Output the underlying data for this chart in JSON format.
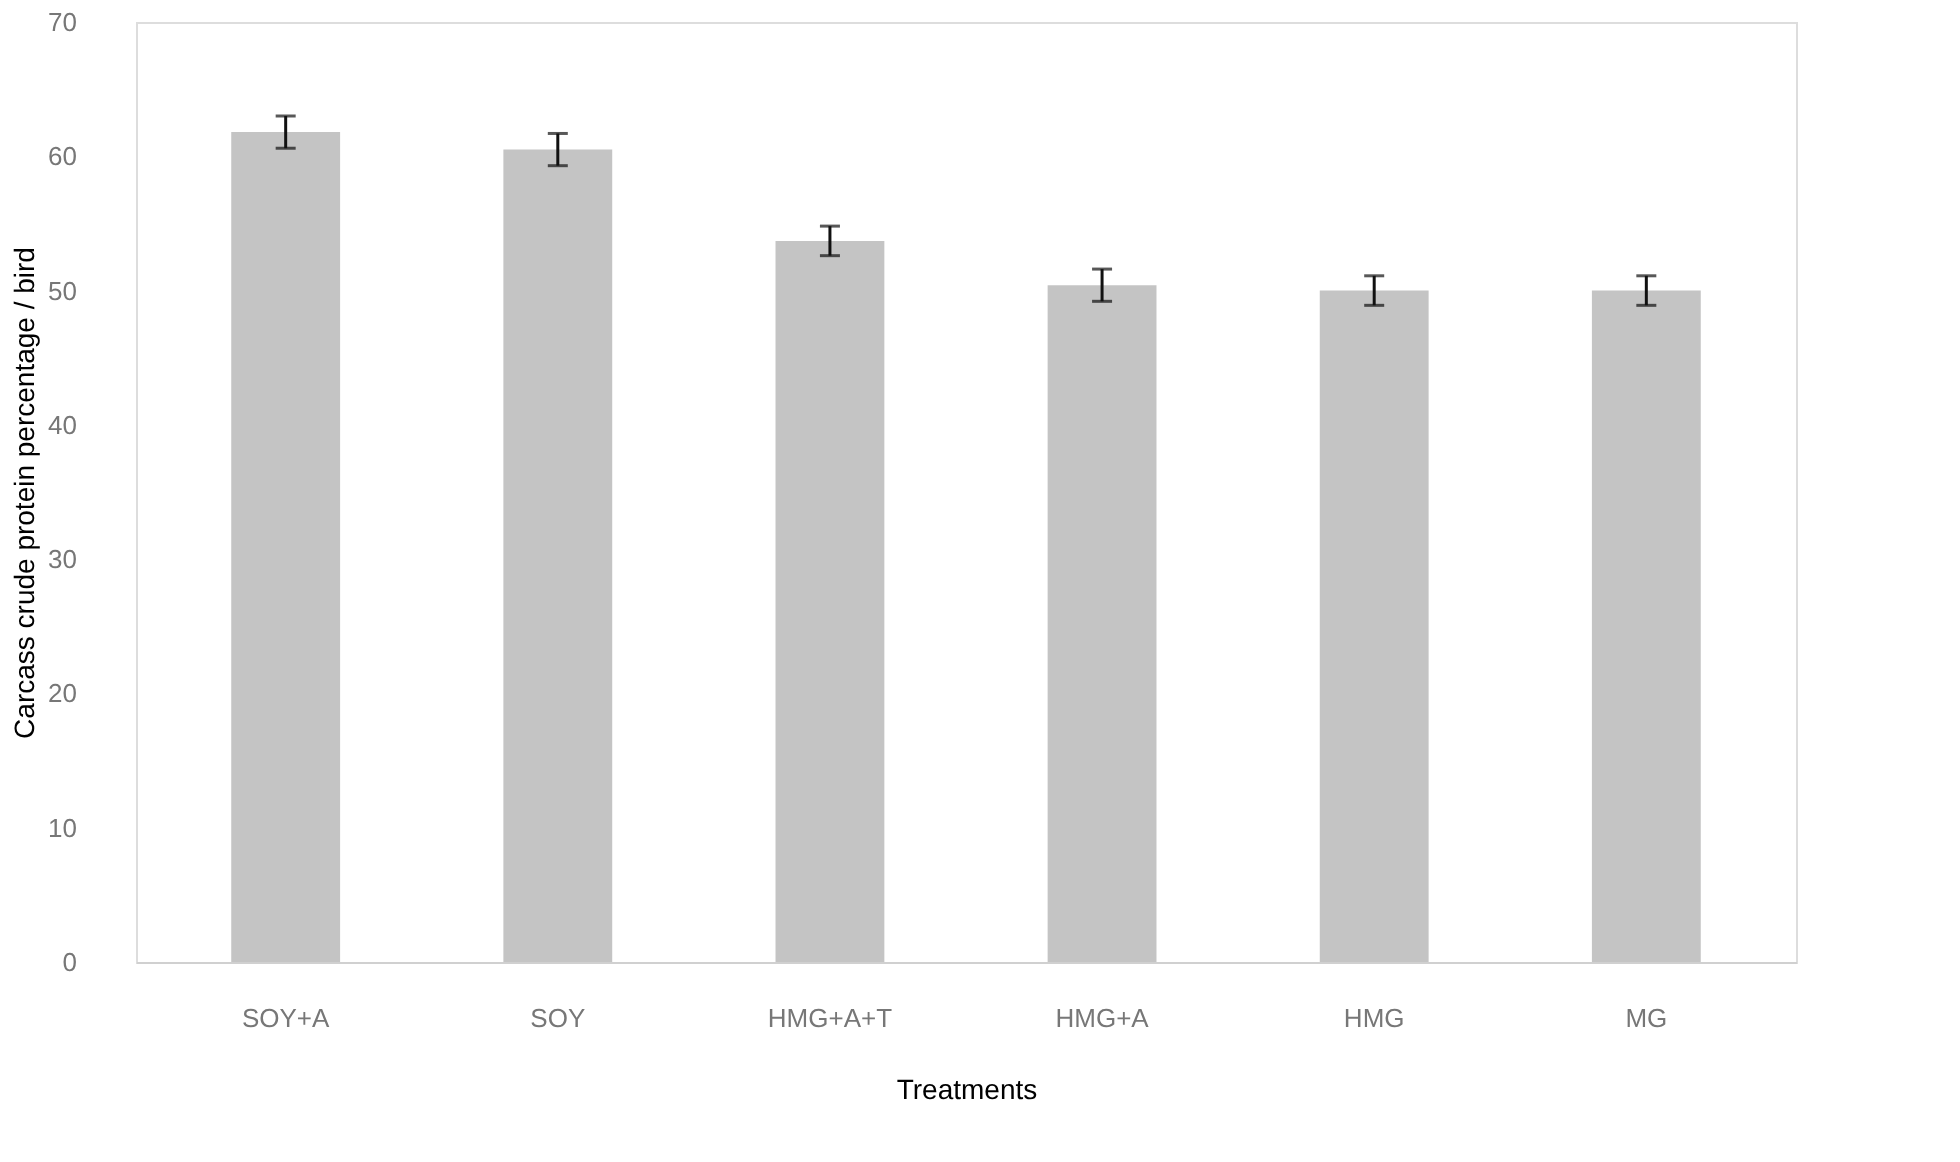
{
  "chart_data": {
    "type": "bar",
    "xlabel": "Treatments",
    "ylabel": "Carcass crude protein percentage / bird",
    "categories": [
      "SOY+A",
      "SOY",
      "HMG+A+T",
      "HMG+A",
      "HMG",
      "MG"
    ],
    "values": [
      61.8,
      60.5,
      53.7,
      50.4,
      50.0,
      50.0
    ],
    "errors": [
      1.2,
      1.2,
      1.1,
      1.2,
      1.1,
      1.1
    ],
    "color": "#c4c4c4",
    "ylim": [
      0,
      70
    ],
    "yticks": [
      0,
      10,
      20,
      30,
      40,
      50,
      60,
      70
    ],
    "grid": false
  }
}
